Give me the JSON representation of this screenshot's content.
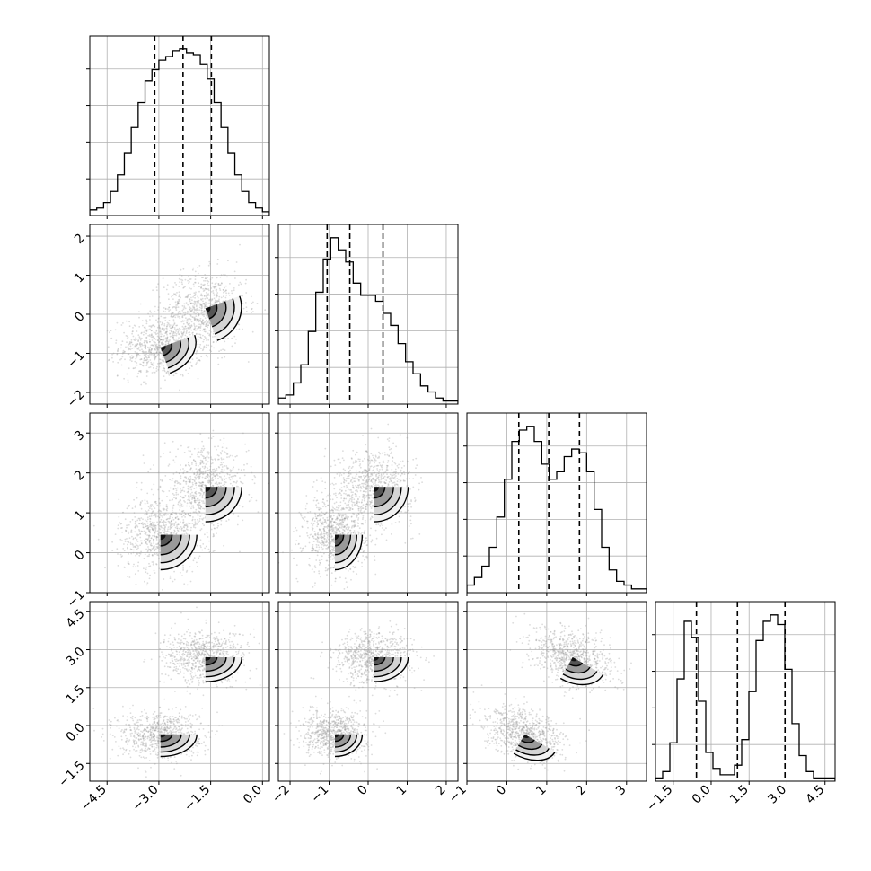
{
  "figure": {
    "background": "#ffffff",
    "grid": true,
    "grid_color": "#b0b0b0",
    "ink_color": "#000000",
    "points_color": "#9a9a9a"
  },
  "chart_data": {
    "type": "corner",
    "dims": [
      {
        "range": [
          -5.0,
          0.2
        ],
        "ticks": [
          -4.5,
          -3.0,
          -1.5,
          0.0
        ],
        "tick_labels": [
          "−4.5",
          "−3.0",
          "−1.5",
          "0.0"
        ],
        "quantiles": [
          -3.12,
          -2.3,
          -1.48
        ],
        "hist_bins": [
          0.3,
          0.4,
          0.7,
          1.3,
          2.2,
          3.4,
          4.8,
          6.1,
          7.3,
          7.9,
          8.4,
          8.6,
          8.9,
          9.0,
          8.8,
          8.7,
          8.2,
          7.4,
          6.1,
          4.8,
          3.4,
          2.2,
          1.3,
          0.7,
          0.4,
          0.2
        ]
      },
      {
        "range": [
          -2.3,
          2.3
        ],
        "ticks": [
          -2,
          -1,
          0,
          1,
          2
        ],
        "tick_labels": [
          "−2",
          "−1",
          "0",
          "1",
          "2"
        ],
        "quantiles": [
          -1.05,
          -0.47,
          0.38
        ],
        "hist_bins": [
          0.2,
          0.3,
          0.7,
          1.3,
          2.4,
          3.7,
          4.8,
          5.5,
          5.1,
          4.7,
          4.0,
          3.6,
          3.6,
          3.4,
          3.0,
          2.6,
          2.0,
          1.4,
          1.0,
          0.6,
          0.4,
          0.2,
          0.1,
          0.1
        ]
      },
      {
        "range": [
          -1.0,
          3.5
        ],
        "ticks": [
          -1,
          0,
          1,
          2,
          3
        ],
        "tick_labels": [
          "−1",
          "0",
          "1",
          "2",
          "3"
        ],
        "quantiles": [
          0.3,
          1.05,
          1.82
        ],
        "hist_bins": [
          0.2,
          0.4,
          0.7,
          1.2,
          2.0,
          3.0,
          4.0,
          4.3,
          4.4,
          4.0,
          3.4,
          3.0,
          3.2,
          3.6,
          3.8,
          3.7,
          3.2,
          2.2,
          1.2,
          0.6,
          0.3,
          0.2,
          0.1,
          0.1
        ]
      },
      {
        "range": [
          -2.2,
          4.9
        ],
        "ticks": [
          -1.5,
          0.0,
          1.5,
          3.0,
          4.5
        ],
        "tick_labels": [
          "−1.5",
          "0.0",
          "1.5",
          "3.0",
          "4.5"
        ],
        "quantiles": [
          -0.58,
          1.04,
          2.92
        ],
        "hist_bins": [
          0.1,
          0.3,
          1.2,
          3.2,
          5.0,
          4.5,
          2.5,
          0.9,
          0.4,
          0.2,
          0.2,
          0.5,
          1.3,
          2.8,
          4.4,
          5.0,
          5.2,
          4.9,
          3.5,
          1.8,
          0.8,
          0.3,
          0.1,
          0.1,
          0.1
        ]
      }
    ],
    "mixture": [
      {
        "weight": 0.5,
        "mean": [
          -2.95,
          -0.85,
          0.45,
          -0.35
        ],
        "sd": [
          0.6,
          0.4,
          0.5,
          0.5
        ]
      },
      {
        "weight": 0.5,
        "mean": [
          -1.65,
          0.15,
          1.65,
          2.7
        ],
        "sd": [
          0.6,
          0.5,
          0.5,
          0.55
        ]
      }
    ],
    "contour_levels": [
      0.12,
      0.35,
      0.6,
      0.85
    ],
    "scatter_points_per_panel": 1600
  }
}
